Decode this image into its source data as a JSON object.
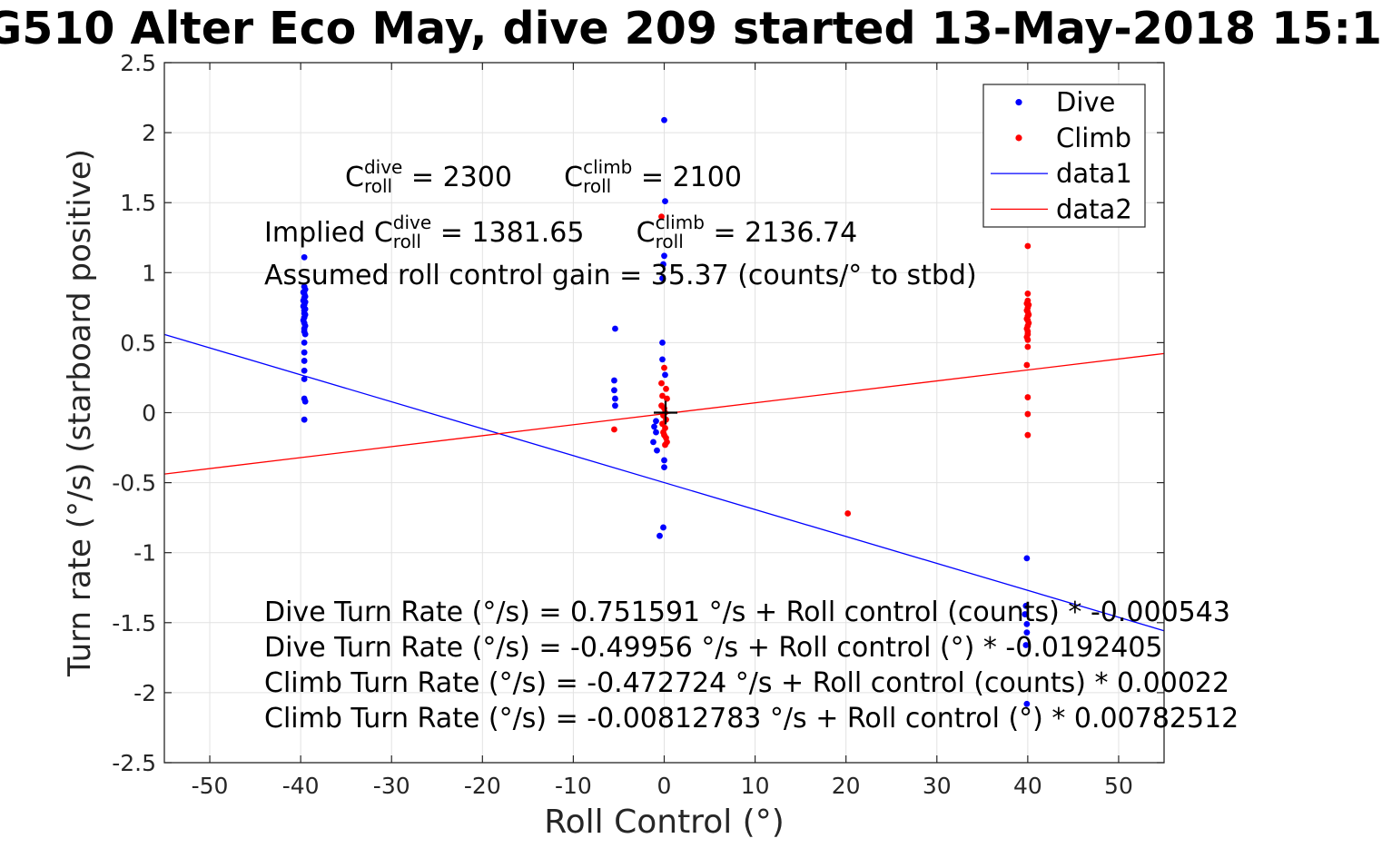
{
  "chart_data": {
    "type": "scatter",
    "title": "G510 Alter Eco May, dive 209 started 13-May-2018 15:1",
    "xlabel": "Roll Control (°)",
    "ylabel": "Turn rate (°/s) (starboard positive)",
    "xlim": [
      -55,
      55
    ],
    "ylim": [
      -2.5,
      2.5
    ],
    "xticks": [
      -50,
      -40,
      -30,
      -20,
      -10,
      0,
      10,
      20,
      30,
      40,
      50
    ],
    "yticks": [
      -2.5,
      -2,
      -1.5,
      -1,
      -0.5,
      0,
      0.5,
      1,
      1.5,
      2,
      2.5
    ],
    "grid": true,
    "colors": {
      "dive": "#0000ff",
      "climb": "#ff0000",
      "axis": "#262626",
      "gridline": "#e2e2e2",
      "origin_marker": "#000000"
    },
    "legend": {
      "position": "top-right",
      "entries": [
        {
          "label": "Dive",
          "marker": "dot",
          "color": "#0000ff"
        },
        {
          "label": "Climb",
          "marker": "dot",
          "color": "#ff0000"
        },
        {
          "label": "data1",
          "marker": "line",
          "color": "#0000ff"
        },
        {
          "label": "data2",
          "marker": "line",
          "color": "#ff0000"
        }
      ]
    },
    "series": [
      {
        "name": "Dive",
        "type": "scatter",
        "color": "#0000ff",
        "points": [
          [
            -39.6,
            1.11
          ],
          [
            -39.6,
            0.9
          ],
          [
            -39.5,
            0.88
          ],
          [
            -39.7,
            0.86
          ],
          [
            -39.6,
            0.85
          ],
          [
            -39.5,
            0.83
          ],
          [
            -39.6,
            0.82
          ],
          [
            -39.7,
            0.8
          ],
          [
            -39.5,
            0.79
          ],
          [
            -39.6,
            0.77
          ],
          [
            -39.7,
            0.76
          ],
          [
            -39.5,
            0.74
          ],
          [
            -39.6,
            0.73
          ],
          [
            -39.6,
            0.71
          ],
          [
            -39.5,
            0.7
          ],
          [
            -39.6,
            0.68
          ],
          [
            -39.7,
            0.66
          ],
          [
            -39.6,
            0.64
          ],
          [
            -39.5,
            0.62
          ],
          [
            -39.6,
            0.6
          ],
          [
            -39.6,
            0.58
          ],
          [
            -39.5,
            0.56
          ],
          [
            -39.6,
            0.5
          ],
          [
            -39.6,
            0.43
          ],
          [
            -39.6,
            0.37
          ],
          [
            -39.6,
            0.3
          ],
          [
            -39.6,
            0.24
          ],
          [
            -39.6,
            0.1
          ],
          [
            -39.5,
            0.08
          ],
          [
            -39.6,
            -0.05
          ],
          [
            -5.4,
            0.6
          ],
          [
            -5.5,
            0.23
          ],
          [
            -5.5,
            0.16
          ],
          [
            -5.4,
            0.1
          ],
          [
            -5.4,
            0.05
          ],
          [
            0.0,
            2.09
          ],
          [
            0.1,
            1.51
          ],
          [
            0.0,
            1.12
          ],
          [
            -0.1,
            1.06
          ],
          [
            -0.2,
            0.96
          ],
          [
            -0.2,
            0.5
          ],
          [
            -0.2,
            0.38
          ],
          [
            0.1,
            0.27
          ],
          [
            -0.9,
            -0.06
          ],
          [
            -1.1,
            -0.1
          ],
          [
            -0.9,
            -0.14
          ],
          [
            -1.2,
            -0.21
          ],
          [
            -0.8,
            -0.27
          ],
          [
            0.0,
            -0.34
          ],
          [
            0.0,
            -0.39
          ],
          [
            -0.1,
            -0.82
          ],
          [
            -0.5,
            -0.88
          ],
          [
            39.9,
            -1.04
          ],
          [
            39.8,
            -1.38
          ],
          [
            39.7,
            -1.44
          ],
          [
            39.9,
            -1.51
          ],
          [
            39.9,
            -1.57
          ],
          [
            39.8,
            -1.66
          ],
          [
            39.9,
            -2.08
          ]
        ]
      },
      {
        "name": "Climb",
        "type": "scatter",
        "color": "#ff0000",
        "points": [
          [
            -0.3,
            1.4
          ],
          [
            0.0,
            0.32
          ],
          [
            -0.3,
            0.21
          ],
          [
            0.2,
            0.17
          ],
          [
            -0.2,
            0.12
          ],
          [
            0.3,
            0.1
          ],
          [
            -0.3,
            0.05
          ],
          [
            0.0,
            0.03
          ],
          [
            0.1,
            0.0
          ],
          [
            -0.1,
            -0.02
          ],
          [
            0.2,
            -0.05
          ],
          [
            -0.2,
            -0.08
          ],
          [
            0.1,
            -0.11
          ],
          [
            -0.1,
            -0.14
          ],
          [
            0.0,
            -0.16
          ],
          [
            0.2,
            -0.18
          ],
          [
            0.3,
            -0.21
          ],
          [
            0.1,
            -0.23
          ],
          [
            -5.5,
            -0.12
          ],
          [
            20.2,
            -0.72
          ],
          [
            40.0,
            1.19
          ],
          [
            40.0,
            0.85
          ],
          [
            40.0,
            0.8
          ],
          [
            39.9,
            0.78
          ],
          [
            40.1,
            0.77
          ],
          [
            40.0,
            0.75
          ],
          [
            39.9,
            0.73
          ],
          [
            40.0,
            0.72
          ],
          [
            40.1,
            0.7
          ],
          [
            40.0,
            0.69
          ],
          [
            39.9,
            0.67
          ],
          [
            40.0,
            0.66
          ],
          [
            40.1,
            0.64
          ],
          [
            40.0,
            0.62
          ],
          [
            39.9,
            0.6
          ],
          [
            40.0,
            0.58
          ],
          [
            40.0,
            0.56
          ],
          [
            39.9,
            0.54
          ],
          [
            40.0,
            0.52
          ],
          [
            40.0,
            0.47
          ],
          [
            39.9,
            0.34
          ],
          [
            40.0,
            0.11
          ],
          [
            40.0,
            -0.01
          ],
          [
            40.0,
            -0.16
          ]
        ]
      },
      {
        "name": "data1",
        "type": "line",
        "color": "#0000ff",
        "x": [
          -55,
          55
        ],
        "y": [
          0.5587,
          -1.5578
        ]
      },
      {
        "name": "data2",
        "type": "line",
        "color": "#ff0000",
        "x": [
          -55,
          55
        ],
        "y": [
          -0.4385,
          0.4223
        ]
      },
      {
        "name": "origin-marker",
        "type": "plus",
        "color": "#000000",
        "point": [
          0.15,
          0.0
        ]
      }
    ],
    "annotations": {
      "coeff_lines": [
        {
          "segments": [
            {
              "t": "C"
            },
            {
              "sup": "dive",
              "sub": "roll"
            },
            {
              "t": " = 2300      "
            },
            {
              "t": "C"
            },
            {
              "sup": "climb",
              "sub": "roll"
            },
            {
              "t": " = 2100"
            }
          ]
        },
        {
          "segments": [
            {
              "t": "Implied C"
            },
            {
              "sup": "dive",
              "sub": "roll"
            },
            {
              "t": " = 1381.65      "
            },
            {
              "t": "C"
            },
            {
              "sup": "climb",
              "sub": "roll"
            },
            {
              "t": " = 2136.74"
            }
          ]
        },
        {
          "segments": [
            {
              "t": "Assumed roll control gain = 35.37 (counts/° to stbd)"
            }
          ]
        }
      ],
      "equations": [
        "Dive Turn Rate (°/s) = 0.751591 °/s + Roll control (counts) * -0.000543",
        "Dive Turn Rate (°/s) = -0.49956 °/s + Roll control (°) * -0.0192405",
        "Climb Turn Rate (°/s) = -0.472724 °/s + Roll control (counts) * 0.00022",
        "Climb Turn Rate (°/s) = -0.00812783 °/s + Roll control (°) * 0.00782512"
      ]
    }
  }
}
